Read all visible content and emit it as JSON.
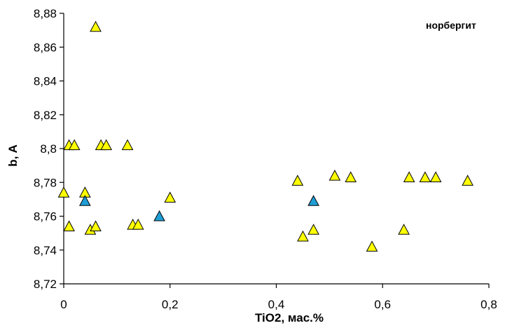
{
  "chart_data": {
    "type": "scatter",
    "title": "",
    "annotation": "норбергит",
    "xlabel": "TiO2, мас.%",
    "ylabel": "b, A",
    "xlim": [
      0,
      0.8
    ],
    "ylim": [
      8.72,
      8.88
    ],
    "x_ticks": [
      "0",
      "0,2",
      "0,4",
      "0,6",
      "0,8"
    ],
    "y_ticks": [
      "8,72",
      "8,74",
      "8,76",
      "8,78",
      "8,8",
      "8,82",
      "8,84",
      "8,86",
      "8,88"
    ],
    "grid": false,
    "legend": "none",
    "marker": "triangle",
    "series": [
      {
        "color": "#ffff00",
        "points": [
          {
            "x": 0.0,
            "y": 8.774
          },
          {
            "x": 0.01,
            "y": 8.802
          },
          {
            "x": 0.02,
            "y": 8.802
          },
          {
            "x": 0.01,
            "y": 8.754
          },
          {
            "x": 0.04,
            "y": 8.774
          },
          {
            "x": 0.05,
            "y": 8.752
          },
          {
            "x": 0.06,
            "y": 8.754
          },
          {
            "x": 0.06,
            "y": 8.872
          },
          {
            "x": 0.07,
            "y": 8.802
          },
          {
            "x": 0.08,
            "y": 8.802
          },
          {
            "x": 0.12,
            "y": 8.802
          },
          {
            "x": 0.13,
            "y": 8.755
          },
          {
            "x": 0.14,
            "y": 8.755
          },
          {
            "x": 0.2,
            "y": 8.771
          },
          {
            "x": 0.44,
            "y": 8.781
          },
          {
            "x": 0.45,
            "y": 8.748
          },
          {
            "x": 0.47,
            "y": 8.752
          },
          {
            "x": 0.51,
            "y": 8.784
          },
          {
            "x": 0.54,
            "y": 8.783
          },
          {
            "x": 0.58,
            "y": 8.742
          },
          {
            "x": 0.64,
            "y": 8.752
          },
          {
            "x": 0.65,
            "y": 8.783
          },
          {
            "x": 0.68,
            "y": 8.783
          },
          {
            "x": 0.7,
            "y": 8.783
          },
          {
            "x": 0.76,
            "y": 8.781
          }
        ]
      },
      {
        "color": "#1e9ed6",
        "points": [
          {
            "x": 0.04,
            "y": 8.769
          },
          {
            "x": 0.18,
            "y": 8.76
          },
          {
            "x": 0.47,
            "y": 8.769
          }
        ]
      }
    ]
  }
}
